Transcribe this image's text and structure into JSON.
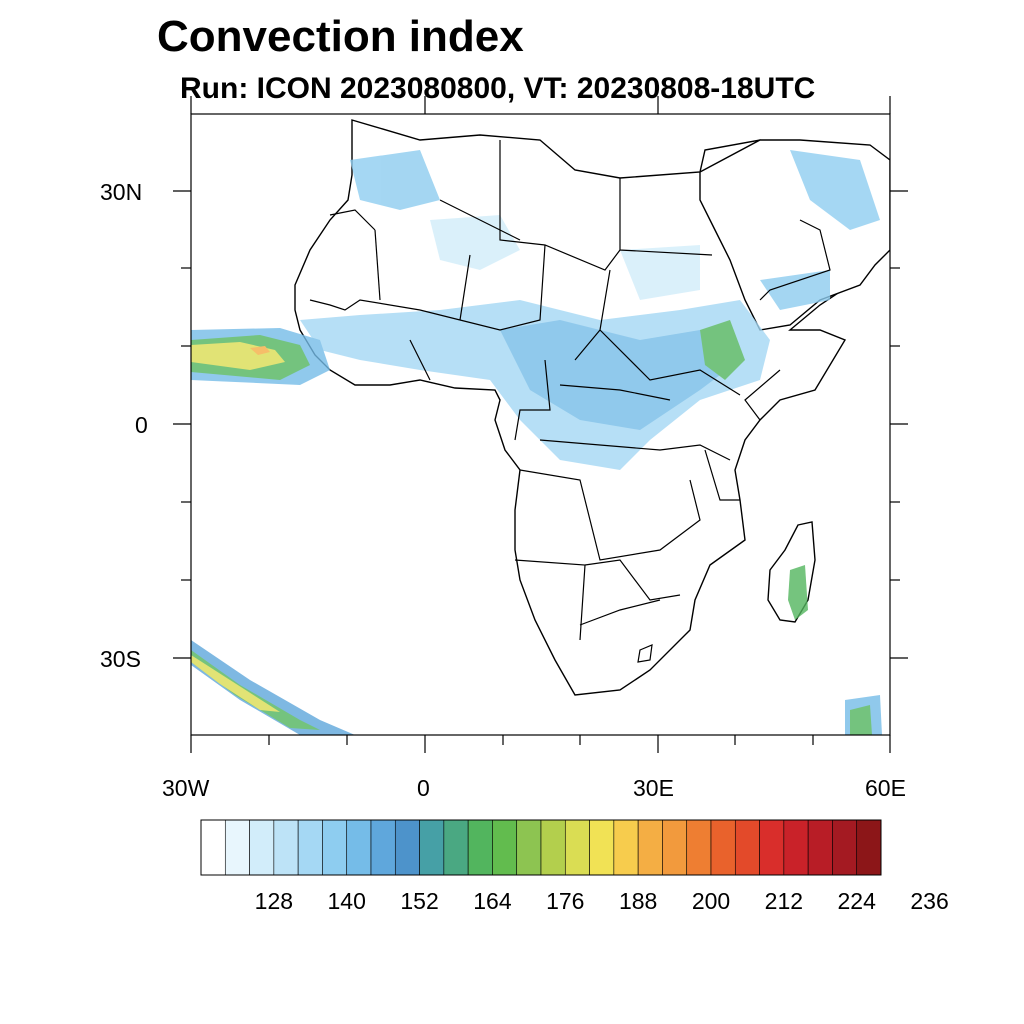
{
  "title": "Convection index",
  "subtitle": "Run: ICON 2023080800,  VT: 20230808-18UTC",
  "lat_axis": {
    "labels": [
      "30N",
      "0",
      "30S"
    ],
    "values": [
      30,
      0,
      -30
    ],
    "extent": [
      -40,
      40
    ]
  },
  "lon_axis": {
    "labels": [
      "30W",
      "0",
      "30E",
      "60E"
    ],
    "values": [
      -30,
      0,
      30,
      60
    ],
    "extent": [
      -30,
      60
    ]
  },
  "colorbar": {
    "tick_labels": [
      "128",
      "140",
      "152",
      "164",
      "176",
      "188",
      "200",
      "212",
      "224",
      "236"
    ],
    "colors": [
      "#ffffff",
      "#e8f6fd",
      "#d2edfa",
      "#bde3f7",
      "#a5d8f4",
      "#8ecdf0",
      "#75bce8",
      "#5fa7dc",
      "#4d93cb",
      "#46a0a6",
      "#4aa882",
      "#52b55e",
      "#62bc4e",
      "#8dc451",
      "#b3cf4d",
      "#dadd53",
      "#f1e255",
      "#f7cc4d",
      "#f4ae44",
      "#f29a3d",
      "#ee7e32",
      "#e9622c",
      "#e34a2a",
      "#d92e2b",
      "#c92229",
      "#b81d26",
      "#a41a22",
      "#8c1618"
    ]
  },
  "features": {
    "land_color": "#ffffff",
    "coast_color": "#000000",
    "convection_blue": "#5fa7dc",
    "convection_green": "#52b55e",
    "convection_yellow": "#dadd53",
    "convection_orange": "#f4ae44"
  }
}
